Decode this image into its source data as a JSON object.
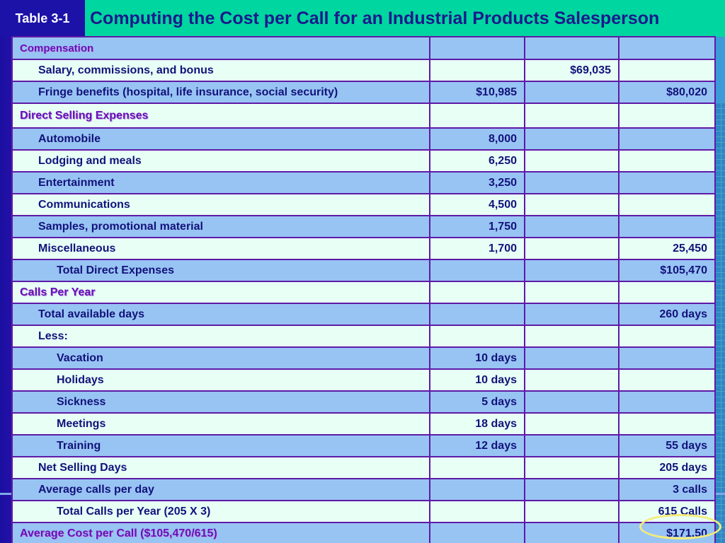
{
  "header": {
    "tag": "Table 3-1",
    "title": "Computing the Cost per Call for an Industrial Products Salesperson"
  },
  "colors": {
    "title_bar_bg": "#00d6a0",
    "title_text": "#1a1a8c",
    "tag_bg": "#1c12a8",
    "section_text": "#6a0fb8",
    "row_light": "#e8fff6",
    "row_blue": "#98c4f4",
    "border": "#5e1aa6",
    "highlight_ring": "#f4ec78"
  },
  "table": {
    "rows": [
      {
        "label": "Compensation",
        "c1": "",
        "c2": "",
        "c3": ""
      },
      {
        "label": "Salary, commissions, and bonus",
        "c1": "",
        "c2": "$69,035",
        "c3": ""
      },
      {
        "label": "Fringe benefits (hospital, life insurance, social security)",
        "c1": "$10,985",
        "c2": "",
        "c3": "$80,020"
      },
      {
        "label": "Direct Selling Expenses",
        "c1": "",
        "c2": "",
        "c3": ""
      },
      {
        "label": "Automobile",
        "c1": "8,000",
        "c2": "",
        "c3": ""
      },
      {
        "label": "Lodging and meals",
        "c1": "6,250",
        "c2": "",
        "c3": ""
      },
      {
        "label": "Entertainment",
        "c1": "3,250",
        "c2": "",
        "c3": ""
      },
      {
        "label": "Communications",
        "c1": "4,500",
        "c2": "",
        "c3": ""
      },
      {
        "label": "Samples, promotional material",
        "c1": "1,750",
        "c2": "",
        "c3": ""
      },
      {
        "label": "Miscellaneous",
        "c1": "1,700",
        "c2": "",
        "c3": "25,450"
      },
      {
        "label": "Total Direct Expenses",
        "c1": "",
        "c2": "",
        "c3": "$105,470"
      },
      {
        "label": "Calls Per Year",
        "c1": "",
        "c2": "",
        "c3": ""
      },
      {
        "label": "Total available days",
        "c1": "",
        "c2": "",
        "c3": "260 days"
      },
      {
        "label": "Less:",
        "c1": "",
        "c2": "",
        "c3": ""
      },
      {
        "label": "Vacation",
        "c1": "10 days",
        "c2": "",
        "c3": ""
      },
      {
        "label": "Holidays",
        "c1": "10 days",
        "c2": "",
        "c3": ""
      },
      {
        "label": "Sickness",
        "c1": "5 days",
        "c2": "",
        "c3": ""
      },
      {
        "label": "Meetings",
        "c1": "18 days",
        "c2": "",
        "c3": ""
      },
      {
        "label": "Training",
        "c1": "12 days",
        "c2": "",
        "c3": "55 days"
      },
      {
        "label": "Net Selling Days",
        "c1": "",
        "c2": "",
        "c3": "205 days"
      },
      {
        "label": "Average calls per day",
        "c1": "",
        "c2": "",
        "c3": "3 calls"
      },
      {
        "label": "Total Calls per Year (205 X 3)",
        "c1": "",
        "c2": "",
        "c3": "615 Calls"
      },
      {
        "label": "Average Cost per Call ($105,470/615)",
        "c1": "",
        "c2": "",
        "c3": "$171.50"
      }
    ]
  }
}
